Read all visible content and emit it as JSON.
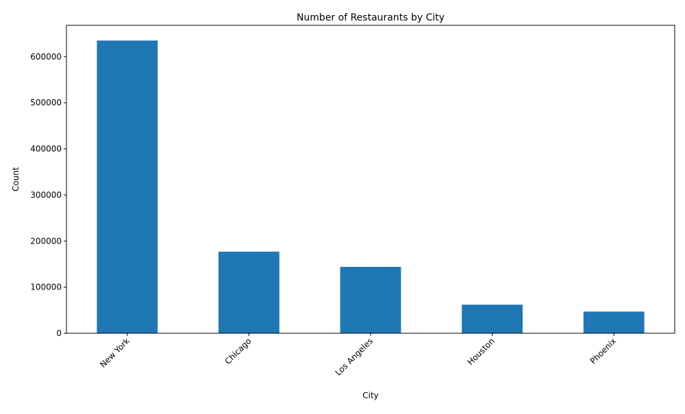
{
  "chart_data": {
    "type": "bar",
    "title": "Number of Restaurants by City",
    "xlabel": "City",
    "ylabel": "Count",
    "categories": [
      "New York",
      "Chicago",
      "Los Angeles",
      "Houston",
      "Phoenix"
    ],
    "values": [
      635000,
      177000,
      144000,
      62000,
      47000
    ],
    "ylim": [
      0,
      668000
    ],
    "yticks": [
      0,
      100000,
      200000,
      300000,
      400000,
      500000,
      600000
    ],
    "ytick_labels": [
      "0",
      "100000",
      "200000",
      "300000",
      "400000",
      "500000",
      "600000"
    ],
    "grid": false,
    "bar_color": "#1f77b4"
  }
}
